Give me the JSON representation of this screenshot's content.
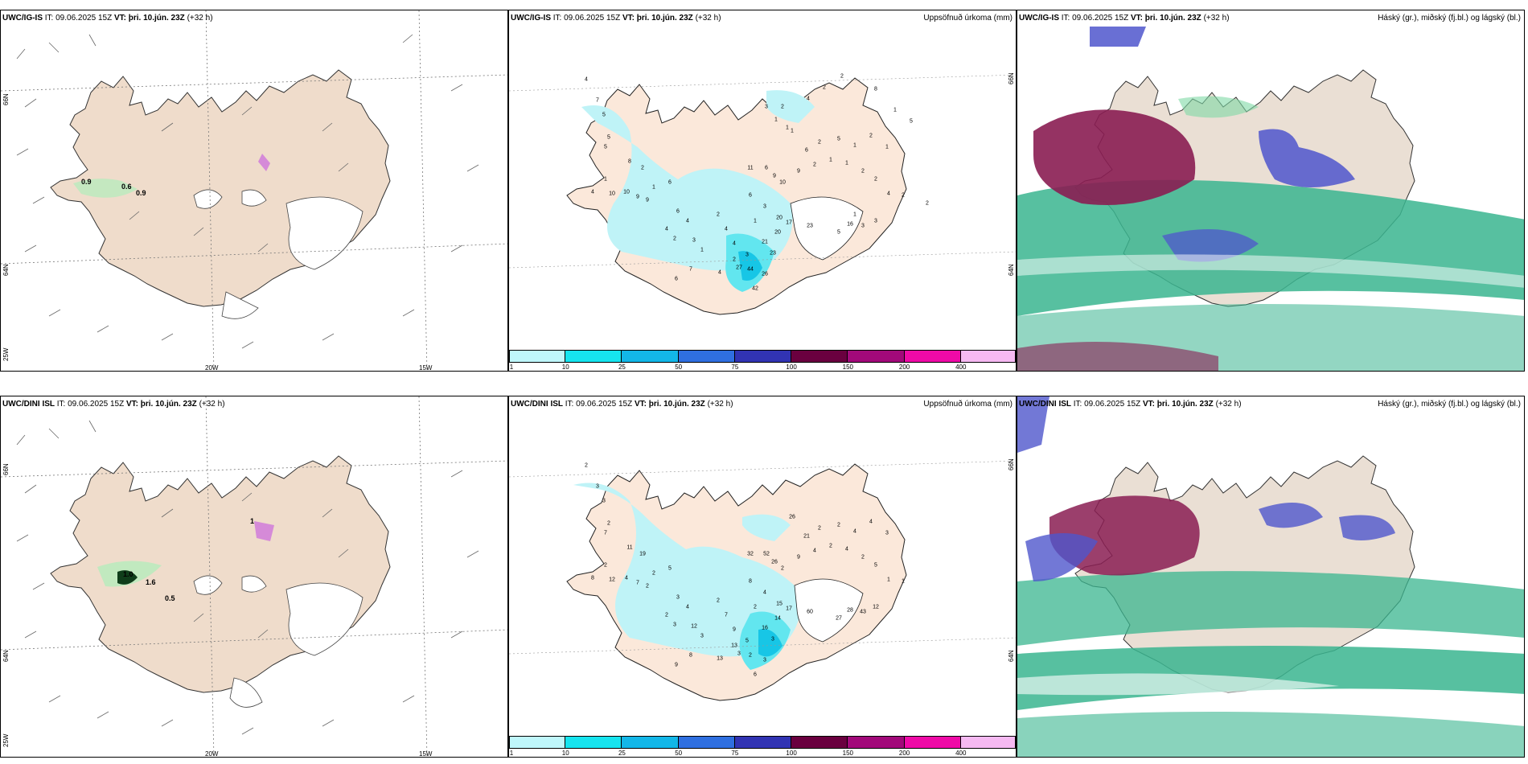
{
  "colors": {
    "land": "#f3e2d0",
    "land_precip": "#fbe8da",
    "precip_light": "#bff3f7",
    "precip_mid": "#62e6ef",
    "precip_heavy": "#17c6e6",
    "snow": "#ffffff",
    "high_cloud": "#3ab58f",
    "mid_cloud": "#8a1d52",
    "low_cloud": "#4f56cc"
  },
  "colorbar": {
    "colors": [
      "#bff7fb",
      "#16e4ef",
      "#13b7e8",
      "#2f6fe0",
      "#3133b3",
      "#6a003f",
      "#a2097a",
      "#ef0aa7",
      "#f6b9f2"
    ],
    "ticks": [
      "1",
      "10",
      "25",
      "50",
      "75",
      "100",
      "150",
      "200",
      "400"
    ]
  },
  "rows": [
    {
      "model_label": "UWC/IG-IS",
      "it_label": "IT: 09.06.2025 15Z",
      "vt_label": "VT:",
      "vt_value": "þri. 10.jún. 23Z",
      "lead": "(+32 h)",
      "panel1": {
        "annotations": [
          "0.9",
          "0.6",
          "0.9"
        ],
        "lat_labels": [
          "66N",
          "64N"
        ],
        "lon_labels": [
          "20W",
          "15W",
          "25W"
        ]
      },
      "panel2": {
        "title": "Uppsöfnuð úrkoma (mm)",
        "lat_labels": [
          "66N",
          "64N"
        ],
        "numbers": [
          "4",
          "7",
          "5",
          "5",
          "5",
          "8",
          "2",
          "1",
          "4",
          "10",
          "10",
          "9",
          "9",
          "1",
          "6",
          "6",
          "4",
          "4",
          "2",
          "3",
          "1",
          "7",
          "6",
          "2",
          "4",
          "4",
          "3",
          "6",
          "3",
          "1",
          "2",
          "4",
          "27",
          "44",
          "26",
          "42",
          "23",
          "21",
          "20",
          "17",
          "20",
          "23",
          "5",
          "16",
          "3",
          "3",
          "11",
          "6",
          "9",
          "10",
          "9",
          "2",
          "1",
          "1",
          "2",
          "2",
          "4",
          "2",
          "1",
          "2",
          "1",
          "5",
          "2",
          "6",
          "1",
          "1",
          "3",
          "2",
          "1",
          "4",
          "2",
          "2",
          "8",
          "1",
          "5",
          "1",
          "2"
        ]
      },
      "panel3": {
        "title": "Háský (gr.), miðský (fj.bl.) og lágský (bl.)"
      }
    },
    {
      "model_label": "UWC/DINI ISL",
      "it_label": "IT: 09.06.2025 15Z",
      "vt_label": "VT:",
      "vt_value": "þri. 10.jún. 23Z",
      "lead": "(+32 h)",
      "panel1": {
        "annotations": [
          "1.0",
          "1.6",
          "0.5",
          "1"
        ],
        "lat_labels": [
          "66N",
          "64N"
        ],
        "lon_labels": [
          "20W",
          "15W",
          "25W"
        ]
      },
      "panel2": {
        "title": "Uppsöfnuð úrkoma (mm)",
        "lat_labels": [
          "66N",
          "64N"
        ],
        "numbers": [
          "2",
          "3",
          "3",
          "2",
          "7",
          "11",
          "19",
          "2",
          "8",
          "12",
          "4",
          "7",
          "2",
          "2",
          "5",
          "3",
          "4",
          "2",
          "3",
          "12",
          "3",
          "8",
          "9",
          "2",
          "7",
          "9",
          "5",
          "8",
          "4",
          "2",
          "13",
          "13",
          "3",
          "2",
          "3",
          "6",
          "3",
          "16",
          "14",
          "17",
          "15",
          "60",
          "27",
          "28",
          "43",
          "12",
          "32",
          "52",
          "26",
          "2",
          "9",
          "4",
          "2",
          "4",
          "2",
          "5",
          "1",
          "1",
          "3",
          "4",
          "4",
          "2",
          "2",
          "21",
          "26"
        ]
      },
      "panel3": {
        "title": "Háský (gr.), miðský (fj.bl.) og lágský (bl.)"
      }
    }
  ]
}
